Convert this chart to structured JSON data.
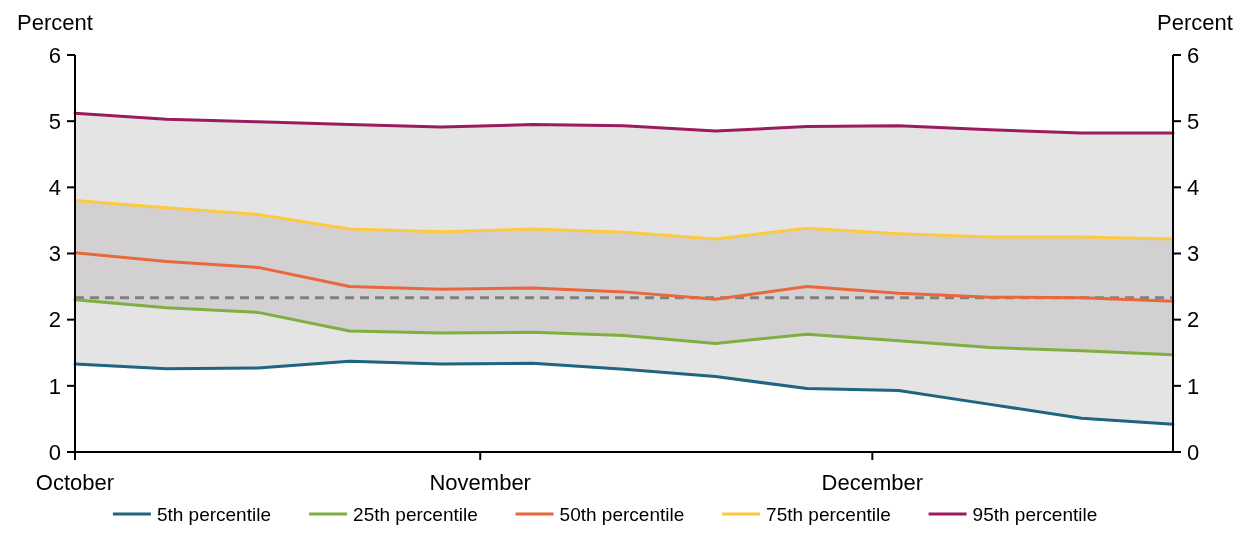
{
  "chart_data": {
    "type": "line",
    "ylabel": "Percent",
    "y2label": "Percent",
    "x": [
      "--10-01",
      "--10-08",
      "--10-15",
      "--10-22",
      "--10-29",
      "--11-05",
      "--11-12",
      "--11-19",
      "--11-26",
      "--12-03",
      "--12-10",
      "--12-17",
      "--12-24"
    ],
    "xlim": [
      "--10-01",
      "--12-24"
    ],
    "xticks": [
      {
        "value": "--10-01",
        "label": "October"
      },
      {
        "value": "--11-01",
        "label": "November"
      },
      {
        "value": "--12-01",
        "label": "December"
      }
    ],
    "ylim": [
      0,
      6
    ],
    "yticks": [
      0,
      1,
      2,
      3,
      4,
      5,
      6
    ],
    "y2lim": [
      0,
      6
    ],
    "y2ticks": [
      0,
      1,
      2,
      3,
      4,
      5,
      6
    ],
    "series": [
      {
        "name": "5th percentile",
        "color": "#1f6480",
        "values": [
          1.33,
          1.26,
          1.27,
          1.37,
          1.33,
          1.34,
          1.25,
          1.14,
          0.96,
          0.93,
          0.72,
          0.51,
          0.42
        ]
      },
      {
        "name": "25th percentile",
        "color": "#7fae41",
        "values": [
          2.3,
          2.18,
          2.11,
          1.83,
          1.8,
          1.81,
          1.76,
          1.64,
          1.78,
          1.68,
          1.58,
          1.53,
          1.47
        ]
      },
      {
        "name": "50th percentile",
        "color": "#e8673b",
        "values": [
          3.01,
          2.88,
          2.79,
          2.5,
          2.46,
          2.48,
          2.42,
          2.31,
          2.5,
          2.4,
          2.34,
          2.33,
          2.28
        ]
      },
      {
        "name": "75th percentile",
        "color": "#fcc940",
        "values": [
          3.8,
          3.69,
          3.59,
          3.37,
          3.33,
          3.37,
          3.32,
          3.22,
          3.38,
          3.3,
          3.25,
          3.25,
          3.22
        ],
        "lower": [
          2.3,
          2.18,
          2.11,
          1.83,
          1.8,
          1.81,
          1.76,
          1.64,
          1.78,
          1.68,
          1.58,
          1.53,
          1.47
        ],
        "upper": [
          3.8,
          3.69,
          3.59,
          3.37,
          3.33,
          3.37,
          3.32,
          3.22,
          3.38,
          3.3,
          3.25,
          3.25,
          3.22
        ]
      },
      {
        "name": "95th percentile",
        "color": "#9b1c5e",
        "values": [
          5.12,
          5.03,
          4.99,
          4.95,
          4.91,
          4.95,
          4.93,
          4.85,
          4.92,
          4.93,
          4.87,
          4.82,
          4.82
        ],
        "lower": [
          1.33,
          1.26,
          1.27,
          1.37,
          1.33,
          1.34,
          1.25,
          1.14,
          0.96,
          0.93,
          0.72,
          0.51,
          0.42
        ],
        "upper": [
          5.12,
          5.03,
          4.99,
          4.95,
          4.91,
          4.95,
          4.93,
          4.85,
          4.92,
          4.93,
          4.87,
          4.82,
          4.82
        ]
      }
    ],
    "ref_lines": [
      {
        "axis": "y",
        "value": 2.33,
        "color": "#808080",
        "line_style": "dashed"
      }
    ],
    "legend": "bottom",
    "grid": false,
    "marker": "none",
    "line_style": "solid"
  }
}
